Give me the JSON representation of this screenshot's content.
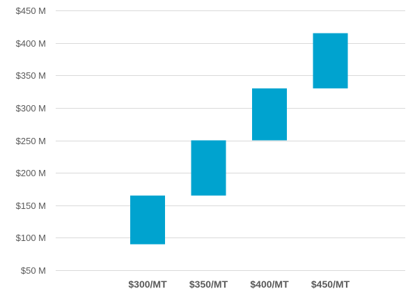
{
  "chart_data": {
    "type": "bar",
    "subtype": "floating",
    "title": "",
    "xlabel": "",
    "ylabel": "",
    "categories": [
      "$300/MT",
      "$350/MT",
      "$400/MT",
      "$450/MT"
    ],
    "series": [
      {
        "low": [
          90,
          165,
          250,
          330
        ],
        "high": [
          165,
          250,
          330,
          415
        ],
        "color": "#00a3cf"
      }
    ],
    "ylim": [
      50,
      450
    ],
    "y_ticks": [
      50,
      100,
      150,
      200,
      250,
      300,
      350,
      400,
      450
    ],
    "y_tick_labels": [
      "$50 M",
      "$100 M",
      "$150 M",
      "$200 M",
      "$250 M",
      "$300 M",
      "$350 M",
      "$400 M",
      "$450 M"
    ],
    "grid": true,
    "legend": "none",
    "colors": {
      "bar": "#00a3cf",
      "grid": "#d9d9d9",
      "text": "#595959"
    }
  }
}
